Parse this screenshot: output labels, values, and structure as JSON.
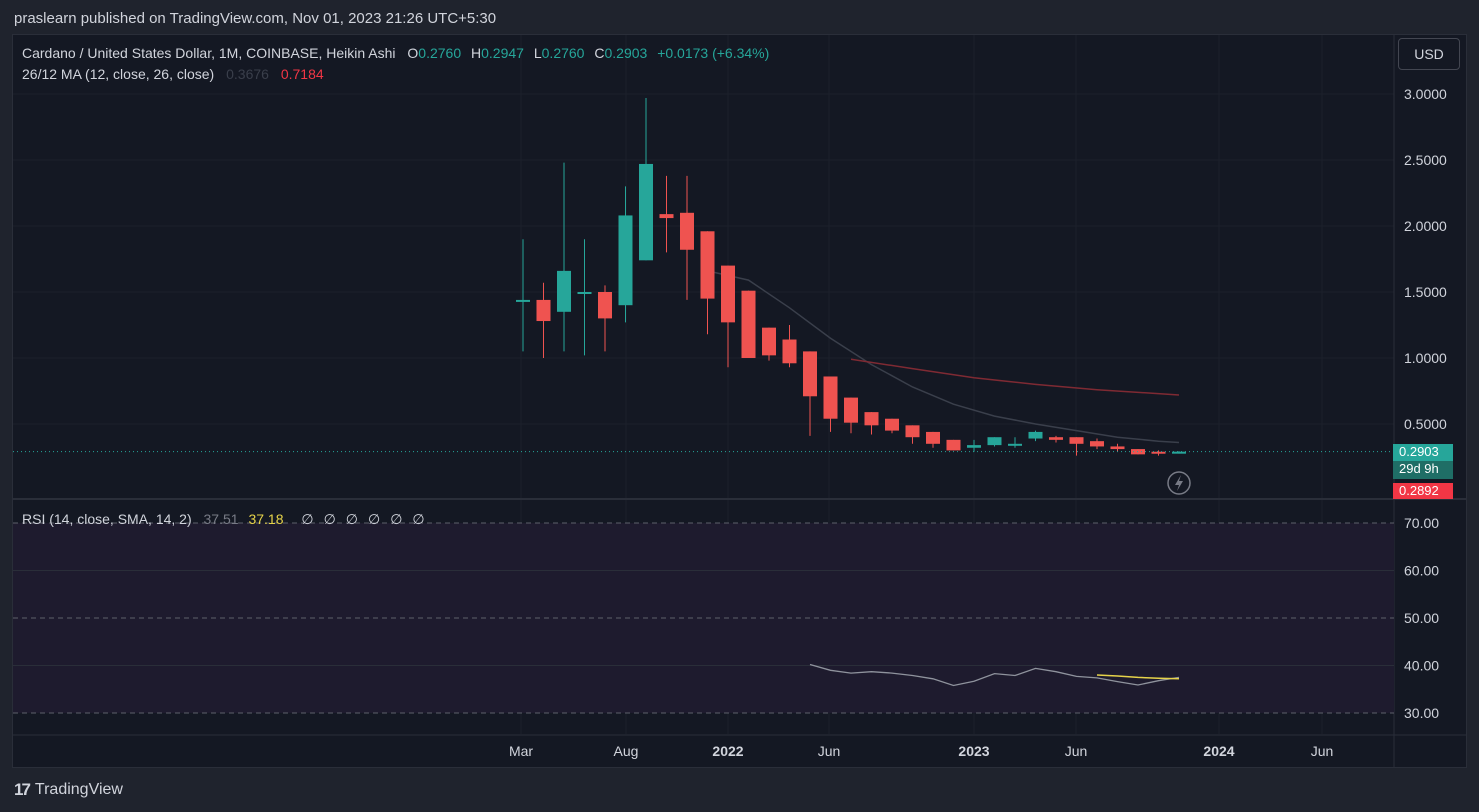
{
  "header": {
    "publisher": "praslearn published on TradingView.com, Nov 01, 2023 21:26 UTC+5:30"
  },
  "footer": {
    "brand": "TradingView",
    "logo": "17"
  },
  "legend": {
    "symbol": "Cardano / United States Dollar, 1M, COINBASE, Heikin Ashi",
    "o_label": "O",
    "o_value": "0.2760",
    "h_label": "H",
    "h_value": "0.2947",
    "l_label": "L",
    "l_value": "0.2760",
    "c_label": "C",
    "c_value": "0.2903",
    "change": "+0.0173 (+6.34%)",
    "ma_label": "26/12 MA (12, close, 26, close)",
    "ma_value1": "0.3676",
    "ma_value2": "0.7184",
    "rsi_label": "RSI (14, close, SMA, 14, 2)",
    "rsi_value1": "37.51",
    "rsi_value2": "37.18",
    "rsi_empty": [
      "∅",
      "∅",
      "∅",
      "∅",
      "∅",
      "∅"
    ]
  },
  "currency_button": "USD",
  "price_axis": [
    "3.0000",
    "2.5000",
    "2.0000",
    "1.5000",
    "1.0000",
    "0.5000"
  ],
  "price_tags": {
    "last": "0.2903",
    "countdown": "29d 9h",
    "ma": "0.2892"
  },
  "rsi_axis": [
    "70.00",
    "60.00",
    "50.00",
    "40.00",
    "30.00"
  ],
  "time_axis": [
    "Mar",
    "Aug",
    "2022",
    "Jun",
    "2023",
    "Jun",
    "2024",
    "Jun"
  ],
  "colors": {
    "up": "#26a69a",
    "down": "#ef5350",
    "ma_slow": "#7f2a33",
    "ma_fast": "#3a3f4b",
    "rsi_line": "#8f939d",
    "rsi_sma": "#e6d34a"
  },
  "chart_data": {
    "type": "candlestick",
    "series": [
      {
        "name": "Cardano / United States Dollar",
        "ohlc": [
          [
            1.44,
            1.9,
            1.05,
            1.44
          ],
          [
            1.44,
            1.57,
            1.0,
            1.28
          ],
          [
            1.35,
            2.48,
            1.05,
            1.66
          ],
          [
            1.5,
            1.9,
            1.02,
            1.5
          ],
          [
            1.5,
            1.55,
            1.05,
            1.3
          ],
          [
            1.4,
            2.3,
            1.27,
            2.08
          ],
          [
            1.74,
            2.97,
            1.74,
            2.47
          ],
          [
            2.09,
            2.38,
            1.8,
            2.06
          ],
          [
            2.1,
            2.38,
            1.44,
            1.82
          ],
          [
            1.96,
            1.96,
            1.18,
            1.45
          ],
          [
            1.7,
            1.7,
            0.93,
            1.27
          ],
          [
            1.51,
            1.51,
            1.0,
            1.0
          ],
          [
            1.23,
            1.23,
            0.98,
            1.02
          ],
          [
            1.14,
            1.25,
            0.93,
            0.96
          ],
          [
            1.05,
            1.05,
            0.41,
            0.71
          ],
          [
            0.86,
            0.86,
            0.44,
            0.54
          ],
          [
            0.7,
            0.7,
            0.43,
            0.51
          ],
          [
            0.59,
            0.59,
            0.42,
            0.49
          ],
          [
            0.54,
            0.54,
            0.43,
            0.45
          ],
          [
            0.49,
            0.49,
            0.35,
            0.4
          ],
          [
            0.44,
            0.44,
            0.32,
            0.35
          ],
          [
            0.38,
            0.38,
            0.3,
            0.3
          ],
          [
            0.32,
            0.38,
            0.29,
            0.34
          ],
          [
            0.34,
            0.4,
            0.33,
            0.4
          ],
          [
            0.35,
            0.4,
            0.32,
            0.35
          ],
          [
            0.39,
            0.45,
            0.37,
            0.44
          ],
          [
            0.4,
            0.41,
            0.36,
            0.38
          ],
          [
            0.4,
            0.4,
            0.26,
            0.35
          ],
          [
            0.37,
            0.39,
            0.31,
            0.33
          ],
          [
            0.33,
            0.35,
            0.29,
            0.31
          ],
          [
            0.31,
            0.31,
            0.27,
            0.27
          ],
          [
            0.29,
            0.3,
            0.26,
            0.28
          ],
          [
            0.276,
            0.2947,
            0.276,
            0.2903
          ]
        ]
      }
    ],
    "ma_slow": [
      [
        16,
        0.99
      ],
      [
        19,
        0.92
      ],
      [
        22,
        0.85
      ],
      [
        25,
        0.8
      ],
      [
        28,
        0.76
      ],
      [
        32,
        0.72
      ]
    ],
    "ma_fast": [
      [
        9,
        1.66
      ],
      [
        11,
        1.59
      ],
      [
        13,
        1.38
      ],
      [
        15,
        1.15
      ],
      [
        17,
        0.95
      ],
      [
        19,
        0.78
      ],
      [
        21,
        0.65
      ],
      [
        23,
        0.56
      ],
      [
        25,
        0.5
      ],
      [
        27,
        0.45
      ],
      [
        29,
        0.4
      ],
      [
        31,
        0.37
      ],
      [
        32,
        0.36
      ]
    ],
    "rsi": [
      [
        14,
        40.2
      ],
      [
        15,
        39.0
      ],
      [
        16,
        38.4
      ],
      [
        17,
        38.7
      ],
      [
        18,
        38.4
      ],
      [
        19,
        37.9
      ],
      [
        20,
        37.2
      ],
      [
        21,
        35.8
      ],
      [
        22,
        36.7
      ],
      [
        23,
        38.3
      ],
      [
        24,
        37.9
      ],
      [
        25,
        39.4
      ],
      [
        26,
        38.7
      ],
      [
        27,
        37.7
      ],
      [
        28,
        37.4
      ],
      [
        29,
        36.6
      ],
      [
        30,
        35.9
      ],
      [
        31,
        36.8
      ],
      [
        32,
        37.5
      ]
    ],
    "rsi_sma": [
      [
        28,
        38.0
      ],
      [
        29,
        37.8
      ],
      [
        30,
        37.5
      ],
      [
        31,
        37.3
      ],
      [
        32,
        37.2
      ]
    ],
    "price_range": [
      0,
      3.0
    ],
    "rsi_range": [
      30,
      70
    ],
    "rsi_band": [
      30,
      70
    ]
  }
}
